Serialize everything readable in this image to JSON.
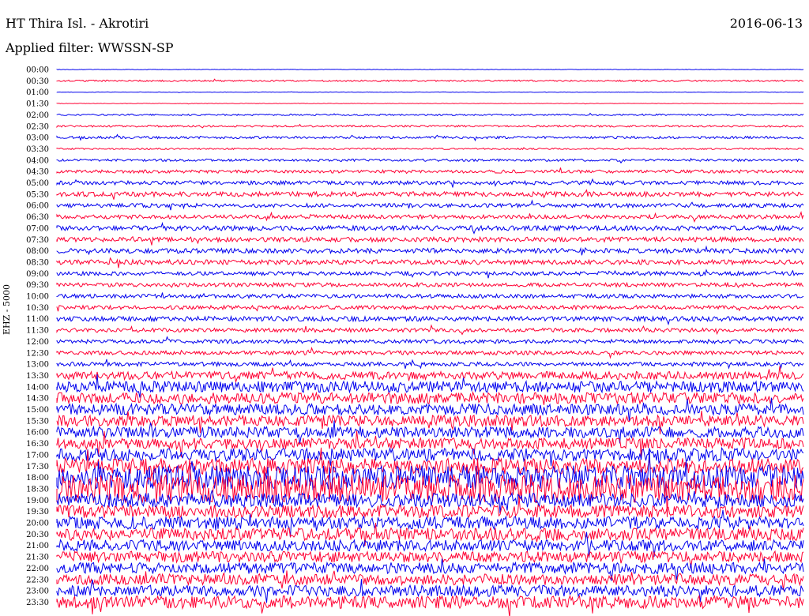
{
  "header": {
    "station": "HT Thira Isl. - Akrotiri",
    "filter_label": "Applied filter: WWSSN-SP",
    "date": "2016-06-13"
  },
  "channel_label": "EHZ - 5000",
  "colors": {
    "odd": "#0000ee",
    "even": "#ff0033"
  },
  "chart_data": {
    "type": "line",
    "xlabel": "",
    "ylabel": "EHZ - 5000",
    "rows": [
      "00:00",
      "00:30",
      "01:00",
      "01:30",
      "02:00",
      "02:30",
      "03:00",
      "03:30",
      "04:00",
      "04:30",
      "05:00",
      "05:30",
      "06:00",
      "06:30",
      "07:00",
      "07:30",
      "08:00",
      "08:30",
      "09:00",
      "09:30",
      "10:00",
      "10:30",
      "11:00",
      "11:30",
      "12:00",
      "12:30",
      "13:00",
      "13:30",
      "14:00",
      "14:30",
      "15:00",
      "15:30",
      "16:00",
      "16:30",
      "17:00",
      "17:30",
      "18:00",
      "18:30",
      "19:00",
      "19:30",
      "20:00",
      "20:30",
      "21:00",
      "21:30",
      "22:00",
      "22:30",
      "23:00",
      "23:30"
    ],
    "noise_level": [
      0.3,
      1,
      0.3,
      0.3,
      1,
      1.2,
      1.5,
      1,
      1.5,
      2,
      2.5,
      3,
      2.5,
      2.5,
      3,
      3,
      3,
      3,
      2.5,
      2.5,
      2.5,
      2.5,
      3,
      2.5,
      2.5,
      2.5,
      2.5,
      5,
      7,
      7,
      7,
      7,
      7,
      7,
      8,
      10,
      15,
      18,
      9,
      8,
      8,
      8,
      7,
      7,
      7,
      7,
      7,
      8
    ],
    "grid": false
  }
}
